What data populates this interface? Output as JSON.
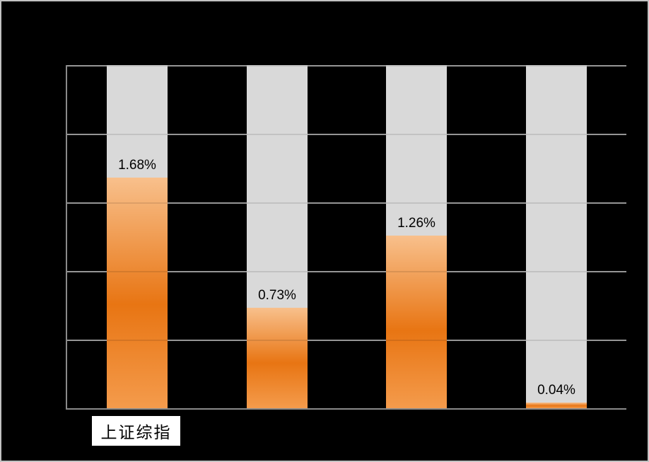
{
  "chart_data": {
    "type": "bar",
    "title": "",
    "legend": "none",
    "unit": "%",
    "ylim": [
      0,
      2.5
    ],
    "gridlines": {
      "horizontal": true,
      "vertical": false,
      "step": 0.5,
      "intervals": 5
    },
    "background_track_bars": true,
    "bars": [
      {
        "value": 1.68,
        "label": "1.68%",
        "category": "上证综指"
      },
      {
        "value": 0.73,
        "label": "0.73%",
        "category": ""
      },
      {
        "value": 1.26,
        "label": "1.26%",
        "category": ""
      },
      {
        "value": 0.04,
        "label": "0.04%",
        "category": ""
      }
    ],
    "visible_category_labels": [
      "上证综指"
    ]
  },
  "category_box": {
    "text": "上证综指"
  },
  "colors": {
    "background": "#000000",
    "frame_border": "#c3c3c3",
    "track": "#d9d9d9",
    "gridline": "#a6a6a6",
    "axis": "#8a8a8a",
    "bar_gradient_top": "#f8c08c",
    "bar_gradient_mid": "#e87513",
    "bar_gradient_bottom": "#f49b4c",
    "data_label_color": "#000000",
    "category_box_bg": "#ffffff",
    "category_text_color": "#000000"
  }
}
